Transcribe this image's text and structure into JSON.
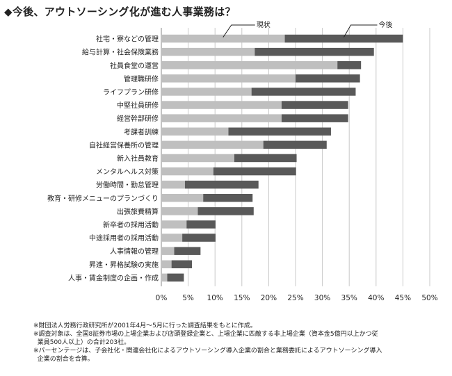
{
  "chart_data": {
    "type": "bar",
    "orientation": "horizontal",
    "stacked": true,
    "title": "◆今後、アウトソーシング化が進む人事業務は？",
    "categories": [
      "社宅・寮などの管理",
      "給与計算・社会保険業務",
      "社員食堂の運営",
      "管理職研修",
      "ライフプラン研修",
      "中堅社員研修",
      "経営幹部研修",
      "考課者訓練",
      "自社経営保養所の管理",
      "新入社員教育",
      "メンタルヘルス対策",
      "労働時間・勤怠管理",
      "教育・研修メニューのプランづくり",
      "出張旅費精算",
      "新卒者の採用活動",
      "中途採用者の採用活動",
      "人事情報の管理",
      "昇進・昇格試験の実施",
      "人事・賃金制度の企画・作成"
    ],
    "series": [
      {
        "name": "現状",
        "color": "#bfbfbf",
        "values": [
          23.0,
          17.4,
          32.8,
          25.0,
          16.8,
          22.4,
          22.4,
          12.5,
          19.0,
          13.6,
          9.7,
          4.4,
          7.8,
          6.8,
          4.7,
          3.9,
          2.4,
          1.9,
          1.1
        ]
      },
      {
        "name": "今後",
        "color": "#595959",
        "values": [
          22.0,
          22.2,
          4.4,
          12.0,
          19.4,
          12.4,
          12.4,
          19.1,
          11.8,
          11.6,
          15.4,
          13.7,
          9.2,
          10.4,
          5.4,
          6.2,
          4.9,
          3.8,
          3.1
        ]
      }
    ],
    "xlim": [
      0,
      50
    ],
    "xticks": [
      "0%",
      "5%",
      "10%",
      "15%",
      "20%",
      "25%",
      "30%",
      "35%",
      "40%",
      "45%",
      "50%"
    ],
    "grid": true,
    "legend_placement": "top-right"
  },
  "notes": [
    "※財団法人労務行政研究所が2001年4月～5月に行った調査結果をもとに作成。",
    "※調査対象は、全国8証券市場の上場企業および店頭登録企業と、上場企業に匹敵する非上場企業（資本金5億円以上かつ従\n  業員500人以上）の合計203社。",
    "※パーセンテージは、子会社化・関連会社化によるアウトソーシング導入企業の割合と業務委託によるアウトソーシング導入\n  企業の割合を合算。"
  ]
}
